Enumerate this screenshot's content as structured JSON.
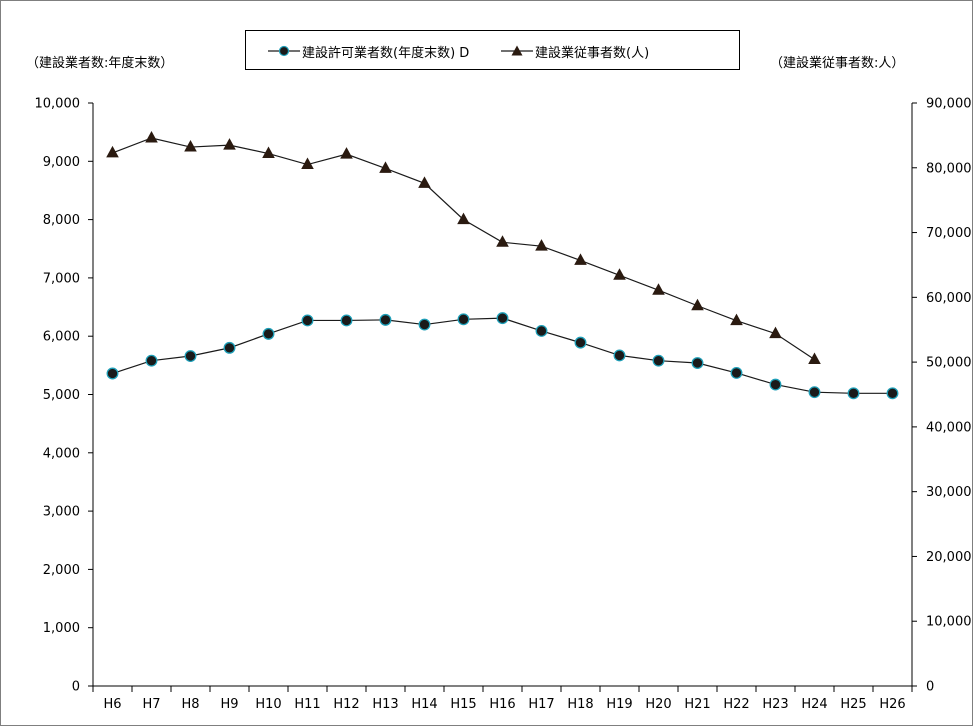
{
  "chart_data": {
    "type": "line",
    "categories": [
      "H6",
      "H7",
      "H8",
      "H9",
      "H10",
      "H11",
      "H12",
      "H13",
      "H14",
      "H15",
      "H16",
      "H17",
      "H18",
      "H19",
      "H20",
      "H21",
      "H22",
      "H23",
      "H24",
      "H25",
      "H26"
    ],
    "y_left": {
      "title": "（建設業者数:年度末数）",
      "ylim": [
        0,
        10000
      ],
      "ticks": [
        0,
        1000,
        2000,
        3000,
        4000,
        5000,
        6000,
        7000,
        8000,
        9000,
        10000
      ],
      "tick_labels": [
        "0",
        "1,000",
        "2,000",
        "3,000",
        "4,000",
        "5,000",
        "6,000",
        "7,000",
        "8,000",
        "9,000",
        "10,000"
      ]
    },
    "y_right": {
      "title": "（建設業従事者数:人）",
      "ylim": [
        0,
        90000
      ],
      "ticks": [
        0,
        10000,
        20000,
        30000,
        40000,
        50000,
        60000,
        70000,
        80000,
        90000
      ],
      "tick_labels": [
        "0",
        "10,000",
        "20,000",
        "30,000",
        "40,000",
        "50,000",
        "60,000",
        "70,000",
        "80,000",
        "90,000"
      ]
    },
    "series": [
      {
        "name": "建設許可業者数(年度末数) D",
        "axis": "left",
        "marker": "circle",
        "color": "#1a1a1a",
        "marker_edge": "#1e9fb8",
        "values": [
          5360,
          5580,
          5660,
          5800,
          6040,
          6270,
          6270,
          6280,
          6200,
          6290,
          6310,
          6090,
          5890,
          5670,
          5580,
          5540,
          5370,
          5170,
          5040,
          5020,
          5020
        ]
      },
      {
        "name": "建設業従事者数(人)",
        "axis": "right",
        "marker": "triangle",
        "color": "#1a1a1a",
        "values": [
          82300,
          84600,
          83200,
          83500,
          82200,
          80500,
          82100,
          79900,
          77600,
          72000,
          68500,
          67900,
          65700,
          63400,
          61100,
          58700,
          56400,
          54400,
          50400,
          null,
          null
        ]
      }
    ],
    "legend_position": "top-center",
    "grid": false
  }
}
